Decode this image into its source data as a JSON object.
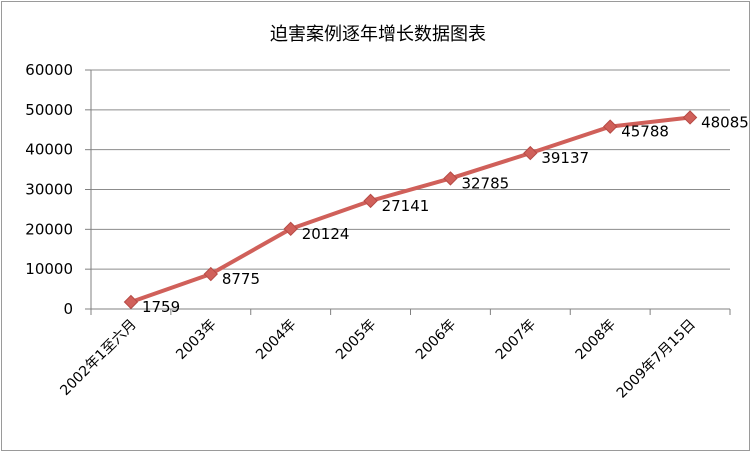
{
  "chart_data": {
    "type": "line",
    "title": "迫害案例逐年增长数据图表",
    "categories": [
      "2002年1至六月",
      "2003年",
      "2004年",
      "2005年",
      "2006年",
      "2007年",
      "2008年",
      "2009年7月15日"
    ],
    "series": [
      {
        "values": [
          1759,
          8775,
          20124,
          27141,
          32785,
          39137,
          45788,
          48085
        ]
      }
    ],
    "data_labels": [
      "1759",
      "8775",
      "20124",
      "27141",
      "32785",
      "39137",
      "45788",
      "48085"
    ],
    "y_ticks": [
      "0",
      "10000",
      "20000",
      "30000",
      "40000",
      "50000",
      "60000"
    ],
    "ylim": [
      0,
      60000
    ],
    "grid": true,
    "legend": "none",
    "series_color": "#d0605a",
    "gridline_color": "#8c8c8c"
  }
}
